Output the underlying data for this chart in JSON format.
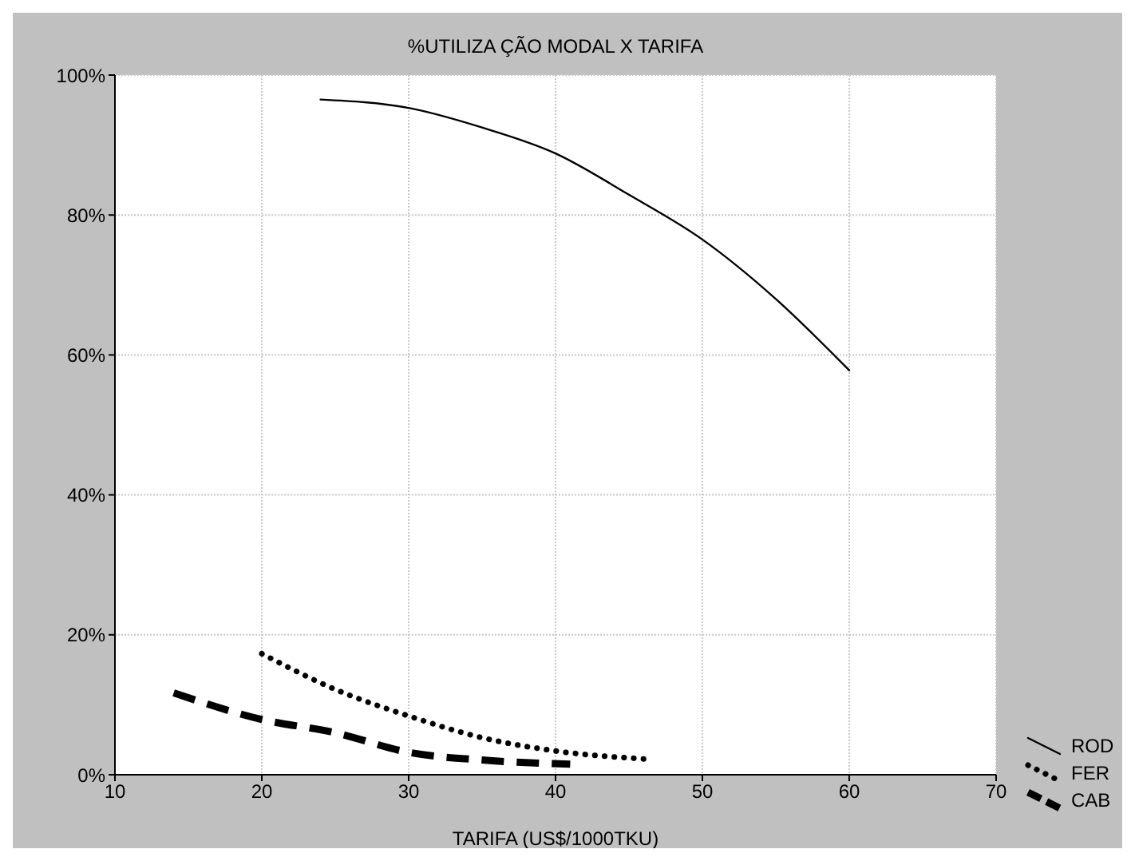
{
  "chart_data": {
    "type": "line",
    "title": "%UTILIZA ÇÃO MODAL X TARIFA",
    "xlabel": "TARIFA (US$/1000TKU)",
    "xlim": [
      10,
      70
    ],
    "xticks": [
      10,
      20,
      30,
      40,
      50,
      60,
      70
    ],
    "ylim": [
      0,
      100
    ],
    "yticks": [
      {
        "value": 0,
        "label": "0%"
      },
      {
        "value": 20,
        "label": "20%"
      },
      {
        "value": 40,
        "label": "40%"
      },
      {
        "value": 60,
        "label": "60%"
      },
      {
        "value": 80,
        "label": "80%"
      },
      {
        "value": 100,
        "label": "100%"
      }
    ],
    "grid": true,
    "legend": "bottom right",
    "marker": "none",
    "series": [
      {
        "name": "ROD",
        "color": "#000000",
        "line_style": "solid",
        "x": [
          24,
          30,
          35,
          40,
          45,
          50,
          55,
          60
        ],
        "values": [
          96.5,
          95.3,
          92.5,
          88.8,
          82.9,
          76.5,
          68,
          57.8
        ]
      },
      {
        "name": "FER",
        "color": "#000000",
        "line_style": "dotted",
        "x": [
          20,
          25,
          30,
          35,
          40,
          46.5
        ],
        "values": [
          17.3,
          12.2,
          8.4,
          5.3,
          3.4,
          2.2
        ]
      },
      {
        "name": "CAB",
        "color": "#000000",
        "line_style": "dashed",
        "x": [
          14,
          20,
          25,
          30,
          35,
          41
        ],
        "values": [
          11.7,
          7.9,
          6.0,
          3.2,
          2.1,
          1.5
        ]
      }
    ]
  }
}
